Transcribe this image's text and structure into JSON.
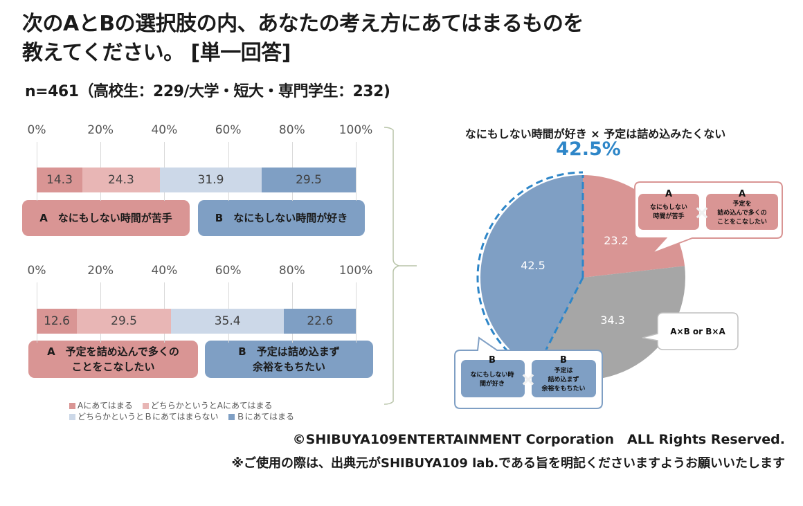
{
  "header": {
    "title_line1": "次のAとBの選択肢の内、あなたの考え方にあてはまるものを",
    "title_line2": "教えてください。 [単一回答]",
    "sample": "n=461（高校生：229/大学・短大・専門学生：232)"
  },
  "colors": {
    "a_strong": "#d99594",
    "a_weak": "#e8b6b5",
    "b_weak": "#ccd8e8",
    "b_strong": "#7f9fc4",
    "gray": "#a6a6a6",
    "highlight_blue": "#2e86c8"
  },
  "chart_data": [
    {
      "type": "bar",
      "orientation": "horizontal-stacked-100",
      "ticks": [
        "0%",
        "20%",
        "40%",
        "60%",
        "80%",
        "100%"
      ],
      "xlim": [
        0,
        100
      ],
      "series": [
        {
          "name": "Aにあてはまる",
          "values": [
            14.3
          ]
        },
        {
          "name": "どちらかというとAにあてはまる",
          "values": [
            24.3
          ]
        },
        {
          "name": "どちらかというとＢにあてはまらない",
          "values": [
            31.9
          ]
        },
        {
          "name": "Ｂにあてはまる",
          "values": [
            29.5
          ]
        }
      ],
      "choice_a": "A　なにもしない時間が苦手",
      "choice_b": "B　なにもしない時間が好き"
    },
    {
      "type": "bar",
      "orientation": "horizontal-stacked-100",
      "ticks": [
        "0%",
        "20%",
        "40%",
        "60%",
        "80%",
        "100%"
      ],
      "xlim": [
        0,
        100
      ],
      "series": [
        {
          "name": "Aにあてはまる",
          "values": [
            12.6
          ]
        },
        {
          "name": "どちらかというとAにあてはまる",
          "values": [
            29.5
          ]
        },
        {
          "name": "どちらかというとＢにあてはまらない",
          "values": [
            35.4
          ]
        },
        {
          "name": "Ｂにあてはまる",
          "values": [
            22.6
          ]
        }
      ],
      "choice_a_line1": "A　予定を詰め込んで多くの",
      "choice_a_line2": "ことをこなしたい",
      "choice_b_line1": "B　予定は詰め込まず",
      "choice_b_line2": "余裕をもちたい"
    },
    {
      "type": "pie",
      "title": "なにもしない時間が好き × 予定は詰め込みたくない",
      "highlight": "42.5%",
      "slices": [
        {
          "name": "A×A",
          "value": 23.2,
          "label": "23.2"
        },
        {
          "name": "A×B or B×A",
          "value": 34.3,
          "label": "34.3"
        },
        {
          "name": "B×B",
          "value": 42.5,
          "label": "42.5"
        }
      ]
    }
  ],
  "legend": [
    {
      "label": "Aにあてはまる"
    },
    {
      "label": "どちらかというとAにあてはまる"
    },
    {
      "label": "どちらかというとＢにあてはまらない"
    },
    {
      "label": "Ｂにあてはまる"
    }
  ],
  "callouts": {
    "aa": {
      "left_head": "A",
      "left_line1": "なにもしない",
      "left_line2": "時間が苦手",
      "right_head": "A",
      "right_line1": "予定を",
      "right_line2": "詰め込んで多くの",
      "right_line3": "ことをこなしたい"
    },
    "mixed": {
      "text": "A×B or B×A"
    },
    "bb": {
      "left_head": "B",
      "left_line1": "なにもしない時",
      "left_line2": "間が好き",
      "right_head": "B",
      "right_line1": "予定は",
      "right_line2": "詰め込まず",
      "right_line3": "余裕をもちたい"
    },
    "cross_symbol": "×"
  },
  "footer": {
    "copyright": "©SHIBUYA109ENTERTAINMENT Corporation　ALL Rights Reserved.",
    "note": "※ご使用の際は、出典元がSHIBUYA109 lab.である旨を明記くださいますようお願いいたします"
  }
}
